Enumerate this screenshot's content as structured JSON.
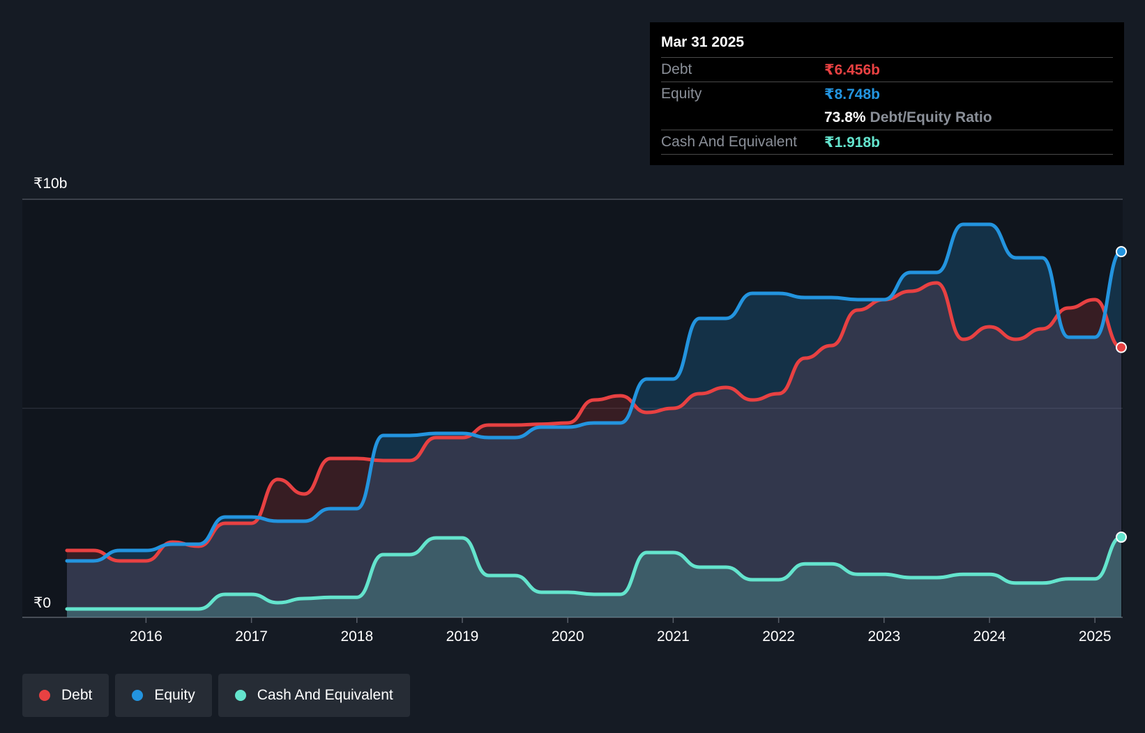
{
  "chart_data": {
    "type": "area",
    "y_axis": {
      "ticks": [
        {
          "value": 0,
          "label": "₹0"
        },
        {
          "value": 10,
          "label": "₹10b"
        }
      ],
      "ylim": [
        0,
        10
      ],
      "unit": "₹ billions"
    },
    "x_axis": {
      "ticks": [
        "2016",
        "2017",
        "2018",
        "2019",
        "2020",
        "2021",
        "2022",
        "2023",
        "2024",
        "2025"
      ],
      "xlim": [
        2015.25,
        2025.25
      ]
    },
    "grid": true,
    "series": [
      {
        "name": "Debt",
        "color": "#e84142",
        "x": [
          2015.25,
          2015.5,
          2015.75,
          2016.0,
          2016.25,
          2016.5,
          2016.75,
          2017.0,
          2017.25,
          2017.5,
          2017.75,
          2018.0,
          2018.25,
          2018.5,
          2018.75,
          2019.0,
          2019.25,
          2019.5,
          2019.75,
          2020.0,
          2020.25,
          2020.5,
          2020.75,
          2021.0,
          2021.25,
          2021.5,
          2021.75,
          2022.0,
          2022.25,
          2022.5,
          2022.75,
          2023.0,
          2023.25,
          2023.5,
          2023.75,
          2024.0,
          2024.25,
          2024.5,
          2024.75,
          2025.0,
          2025.25
        ],
        "values": [
          1.6,
          1.6,
          1.35,
          1.35,
          1.8,
          1.7,
          2.25,
          2.25,
          3.3,
          2.95,
          3.8,
          3.8,
          3.75,
          3.75,
          4.3,
          4.3,
          4.6,
          4.6,
          4.62,
          4.65,
          5.2,
          5.3,
          4.9,
          5.0,
          5.35,
          5.5,
          5.2,
          5.35,
          6.2,
          6.5,
          7.35,
          7.6,
          7.8,
          8.0,
          6.65,
          6.95,
          6.65,
          6.9,
          7.4,
          7.6,
          6.456
        ]
      },
      {
        "name": "Equity",
        "color": "#2394df",
        "x": [
          2015.25,
          2015.5,
          2015.75,
          2016.0,
          2016.25,
          2016.5,
          2016.75,
          2017.0,
          2017.25,
          2017.5,
          2017.75,
          2018.0,
          2018.25,
          2018.5,
          2018.75,
          2019.0,
          2019.25,
          2019.5,
          2019.75,
          2020.0,
          2020.25,
          2020.5,
          2020.75,
          2021.0,
          2021.25,
          2021.5,
          2021.75,
          2022.0,
          2022.25,
          2022.5,
          2022.75,
          2023.0,
          2023.25,
          2023.5,
          2023.75,
          2024.0,
          2024.25,
          2024.5,
          2024.75,
          2025.0,
          2025.25
        ],
        "values": [
          1.35,
          1.35,
          1.6,
          1.6,
          1.75,
          1.75,
          2.4,
          2.4,
          2.3,
          2.3,
          2.6,
          2.6,
          4.35,
          4.35,
          4.4,
          4.4,
          4.3,
          4.3,
          4.55,
          4.55,
          4.65,
          4.65,
          5.7,
          5.7,
          7.15,
          7.15,
          7.75,
          7.75,
          7.65,
          7.65,
          7.6,
          7.6,
          8.25,
          8.25,
          9.4,
          9.4,
          8.6,
          8.6,
          6.7,
          6.7,
          8.748
        ]
      },
      {
        "name": "Cash And Equivalent",
        "color": "#64e4cd",
        "x": [
          2015.25,
          2015.5,
          2015.75,
          2016.0,
          2016.25,
          2016.5,
          2016.75,
          2017.0,
          2017.25,
          2017.5,
          2017.75,
          2018.0,
          2018.25,
          2018.5,
          2018.75,
          2019.0,
          2019.25,
          2019.5,
          2019.75,
          2020.0,
          2020.25,
          2020.5,
          2020.75,
          2021.0,
          2021.25,
          2021.5,
          2021.75,
          2022.0,
          2022.25,
          2022.5,
          2022.75,
          2023.0,
          2023.25,
          2023.5,
          2023.75,
          2024.0,
          2024.25,
          2024.5,
          2024.75,
          2025.0,
          2025.25
        ],
        "values": [
          0.2,
          0.2,
          0.2,
          0.2,
          0.2,
          0.2,
          0.55,
          0.55,
          0.35,
          0.45,
          0.48,
          0.48,
          1.5,
          1.5,
          1.9,
          1.9,
          1.0,
          1.0,
          0.6,
          0.6,
          0.55,
          0.55,
          1.55,
          1.55,
          1.2,
          1.2,
          0.9,
          0.9,
          1.28,
          1.28,
          1.03,
          1.03,
          0.95,
          0.95,
          1.03,
          1.03,
          0.82,
          0.82,
          0.92,
          0.92,
          1.918
        ]
      }
    ]
  },
  "tooltip": {
    "date": "Mar 31 2025",
    "rows": [
      {
        "label": "Debt",
        "value": "₹6.456b",
        "color": "#e84142"
      },
      {
        "label": "Equity",
        "value": "₹8.748b",
        "color": "#2394df"
      },
      {
        "ratio_value": "73.8%",
        "ratio_label": "Debt/Equity Ratio"
      },
      {
        "label": "Cash And Equivalent",
        "value": "₹1.918b",
        "color": "#64e4cd"
      }
    ]
  },
  "legend": [
    {
      "label": "Debt",
      "color": "#e84142"
    },
    {
      "label": "Equity",
      "color": "#2394df"
    },
    {
      "label": "Cash And Equivalent",
      "color": "#64e4cd"
    }
  ],
  "colors": {
    "background": "#151b24",
    "plot_background": "#10151d",
    "grid": "#3a4049",
    "tick_text": "#ffffff"
  }
}
